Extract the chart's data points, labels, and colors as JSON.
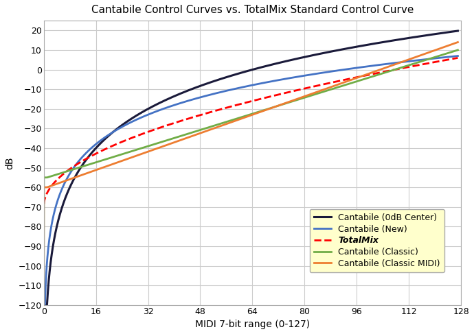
{
  "title": "Cantabile Control Curves vs. TotalMix Standard Control Curve",
  "xlabel": "MIDI 7-bit range (0-127)",
  "ylabel": "dB",
  "xlim": [
    0,
    128
  ],
  "ylim": [
    -120,
    25
  ],
  "yticks": [
    -120,
    -110,
    -100,
    -90,
    -80,
    -70,
    -60,
    -50,
    -40,
    -30,
    -20,
    -10,
    0,
    10,
    20
  ],
  "xticks": [
    0,
    16,
    32,
    48,
    64,
    80,
    96,
    112,
    128
  ],
  "background_color": "#ffffff",
  "grid_color": "#cccccc",
  "legend_bg": "#ffffcc",
  "curves": [
    {
      "label": "Cantabile (0dB Center)",
      "color": "#1a1a3a",
      "linewidth": 2.2,
      "linestyle": "solid",
      "type": "0dB_center"
    },
    {
      "label": "Cantabile (New)",
      "color": "#4472c4",
      "linewidth": 2.0,
      "linestyle": "solid",
      "type": "new"
    },
    {
      "label": "TotalMix",
      "color": "#ff0000",
      "linewidth": 2.0,
      "linestyle": "dashed",
      "type": "totalmix",
      "italic": true
    },
    {
      "label": "Cantabile (Classic)",
      "color": "#70ad47",
      "linewidth": 2.0,
      "linestyle": "solid",
      "type": "classic"
    },
    {
      "label": "Cantabile (Classic MIDI)",
      "color": "#ed7d31",
      "linewidth": 2.0,
      "linestyle": "solid",
      "type": "classic_midi"
    }
  ]
}
